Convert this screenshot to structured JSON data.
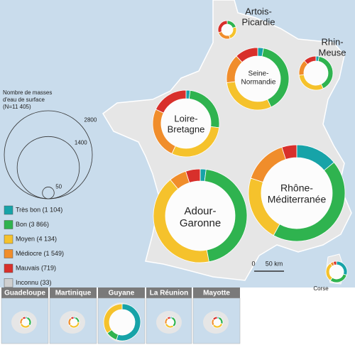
{
  "legend": {
    "size_title": [
      "Nombre de masses",
      "d'eau de surface",
      "(N=11 405)"
    ],
    "size_circles": [
      2800,
      1400,
      50
    ],
    "categories": [
      {
        "label": "Très bon (1 104)",
        "color": "#17a3a8"
      },
      {
        "label": "Bon (3 866)",
        "color": "#2fb34f"
      },
      {
        "label": "Moyen (4 134)",
        "color": "#f5c22c"
      },
      {
        "label": "Médiocre (1 549)",
        "color": "#f08d2b"
      },
      {
        "label": "Mauvais (719)",
        "color": "#d8302b"
      },
      {
        "label": "Inconnu (33)",
        "color": "#cfcfcf"
      }
    ]
  },
  "basins": [
    {
      "label": [
        "Artois-",
        "Picardie"
      ],
      "shares": [
        0,
        20,
        25,
        25,
        30,
        0
      ]
    },
    {
      "label": [
        "Seine-",
        "Normandie"
      ],
      "shares": [
        3,
        40,
        30,
        15,
        12,
        0
      ]
    },
    {
      "label": [
        "Rhin-",
        "Meuse"
      ],
      "shares": [
        3,
        40,
        30,
        15,
        12,
        0
      ]
    },
    {
      "label": [
        "Loire-",
        "Bretagne"
      ],
      "shares": [
        2,
        25,
        30,
        25,
        18,
        0
      ]
    },
    {
      "label": [
        "Adour-",
        "Garonne"
      ],
      "shares": [
        2,
        45,
        42,
        6,
        5,
        0
      ]
    },
    {
      "label": [
        "Rhône-",
        "Méditerranée"
      ],
      "shares": [
        14,
        44,
        22,
        15,
        5,
        0
      ]
    },
    {
      "label": [
        "Corse"
      ],
      "shares": [
        30,
        30,
        30,
        5,
        5,
        0
      ]
    }
  ],
  "scale_bar": [
    "0",
    "50 km"
  ],
  "overseas": [
    {
      "label": "Guadeloupe",
      "shares": [
        5,
        30,
        35,
        20,
        10,
        0
      ]
    },
    {
      "label": "Martinique",
      "shares": [
        5,
        20,
        40,
        25,
        10,
        0
      ]
    },
    {
      "label": "Guyane",
      "shares": [
        55,
        10,
        35,
        0,
        0,
        0
      ]
    },
    {
      "label": "La Réunion",
      "shares": [
        5,
        35,
        30,
        20,
        10,
        0
      ]
    },
    {
      "label": "Mayotte",
      "shares": [
        5,
        25,
        35,
        20,
        15,
        0
      ]
    }
  ]
}
